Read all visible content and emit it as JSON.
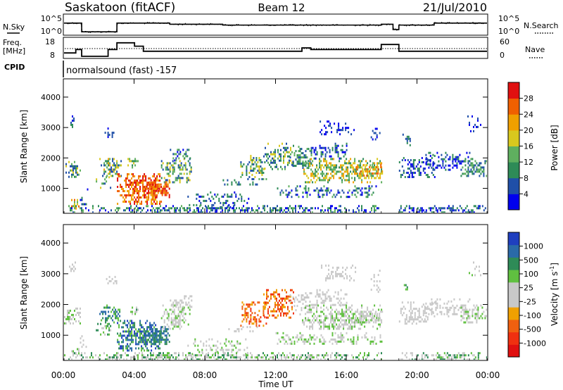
{
  "header": {
    "site": "Saskatoon (fitACF)",
    "beam": "Beam 12",
    "date": "21/Jul/2010"
  },
  "status_panel": {
    "left_labels": {
      "nsky": "N.Sky",
      "freq": "Freq.",
      "freq_unit": "[MHz]",
      "cpid": "CPID"
    },
    "right_labels": {
      "nsearch": "N.Search",
      "nave": "Nave"
    },
    "noise_ticks_left": [
      "10^5",
      "10^0"
    ],
    "noise_ticks_right": [
      "10^5",
      "10^0"
    ],
    "freq_ticks": [
      "18",
      "8"
    ],
    "nave_ticks": [
      "60",
      "0"
    ],
    "cpid_text": "normalsound (fast) -157"
  },
  "colors": {
    "power_scale": [
      "#0000ee",
      "#1f4fa8",
      "#2e8b57",
      "#5faf5f",
      "#d8c81e",
      "#f0a000",
      "#f06000",
      "#e01010"
    ],
    "velocity_scale": [
      "#e01010",
      "#f03010",
      "#f06010",
      "#f0a000",
      "#c8c8c8",
      "#c8c8c8",
      "#60c040",
      "#2e8b57",
      "#2a6aa8",
      "#1f3fbf"
    ]
  },
  "chart_data": [
    {
      "type": "line",
      "name": "noise-timeseries",
      "series": [
        {
          "name": "N.Sky",
          "x": [
            "00:00",
            "00:45",
            "01:00",
            "01:45",
            "03:00",
            "06:00",
            "09:00",
            "12:00",
            "15:00",
            "18:00",
            "18:40",
            "19:00",
            "21:00",
            "24:00"
          ],
          "values": [
            1000,
            1000,
            5,
            5,
            1000,
            500,
            300,
            300,
            300,
            500,
            20,
            300,
            1000,
            1000
          ]
        }
      ],
      "ylim": [
        1,
        100000
      ],
      "log_scale": true
    },
    {
      "type": "line",
      "name": "freq-nave-timeseries",
      "series": [
        {
          "name": "Freq.",
          "x": [
            "00:00",
            "00:40",
            "01:00",
            "02:00",
            "02:30",
            "03:00",
            "04:00",
            "04:30",
            "13:30",
            "14:00",
            "16:00",
            "18:00",
            "19:00",
            "24:00"
          ],
          "values": [
            10,
            12,
            8,
            8,
            12,
            16,
            14,
            11,
            13,
            12,
            12,
            15,
            11,
            11
          ]
        },
        {
          "name": "Nave",
          "x": [
            "00:00",
            "02:30",
            "03:00",
            "13:30",
            "17:00",
            "17:30",
            "18:00",
            "24:00"
          ],
          "values": [
            20,
            20,
            20,
            20,
            40,
            20,
            40,
            20
          ]
        }
      ],
      "ylim": [
        8,
        18
      ]
    },
    {
      "type": "heatmap",
      "name": "power-panel",
      "xlabel": "Time UT",
      "ylabel": "Slant Range [km]",
      "x_ticks": [
        "00:00",
        "04:00",
        "08:00",
        "12:00",
        "16:00",
        "20:00",
        "00:00"
      ],
      "y_ticks": [
        "1000",
        "2000",
        "3000",
        "4000"
      ],
      "xlim": [
        0,
        24
      ],
      "ylim": [
        180,
        4600
      ],
      "colorbar": {
        "label": "Power [dB]",
        "ticks": [
          "4",
          "8",
          "12",
          "16",
          "20",
          "24",
          "28"
        ],
        "range": [
          0,
          30
        ]
      }
    },
    {
      "type": "heatmap",
      "name": "velocity-panel",
      "xlabel": "Time UT",
      "ylabel": "Slant Range [km]",
      "x_ticks": [
        "00:00",
        "04:00",
        "08:00",
        "12:00",
        "16:00",
        "20:00",
        "00:00"
      ],
      "y_ticks": [
        "1000",
        "2000",
        "3000",
        "4000"
      ],
      "xlim": [
        0,
        24
      ],
      "ylim": [
        180,
        4600
      ],
      "colorbar": {
        "label": "Velocity [m s",
        "label_sup": "-1",
        "label_end": "]",
        "ticks": [
          "1000",
          "500",
          "100",
          "25",
          "-25",
          "-100",
          "-500",
          "-1000"
        ],
        "range": [
          -1250,
          1250
        ]
      }
    }
  ]
}
